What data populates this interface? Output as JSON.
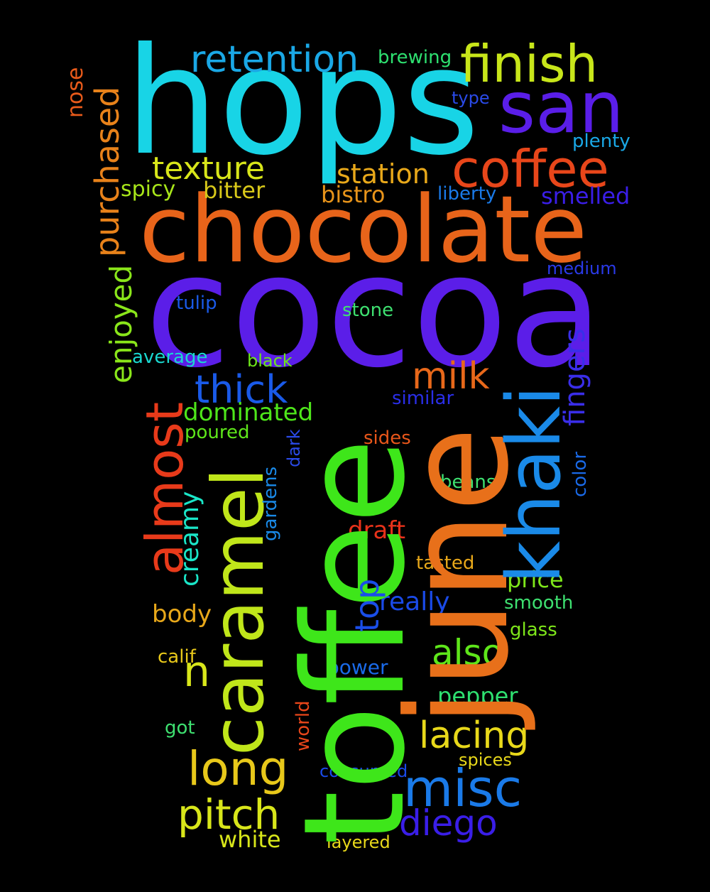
{
  "words": [
    {
      "text": "hops",
      "color": "#18d4e6"
    },
    {
      "text": "cocoa",
      "color": "#5b1ee8"
    },
    {
      "text": "chocolate",
      "color": "#e8641a"
    },
    {
      "text": "toffee",
      "color": "#3ee61a"
    },
    {
      "text": "june",
      "color": "#e8701a"
    },
    {
      "text": "caramel",
      "color": "#c0e61a"
    },
    {
      "text": "khaki",
      "color": "#1a8ae8"
    },
    {
      "text": "san",
      "color": "#5a1ee8"
    },
    {
      "text": "finish",
      "color": "#c8e61a"
    },
    {
      "text": "coffee",
      "color": "#e8461a"
    },
    {
      "text": "retention",
      "color": "#1aa8e6"
    },
    {
      "text": "brewing",
      "color": "#2ee070"
    },
    {
      "text": "nose",
      "color": "#e85a1a"
    },
    {
      "text": "purchased",
      "color": "#e8821a"
    },
    {
      "text": "texture",
      "color": "#d8e61a"
    },
    {
      "text": "station",
      "color": "#e8a81a"
    },
    {
      "text": "type",
      "color": "#2a4ae8"
    },
    {
      "text": "plenty",
      "color": "#1aa8e6"
    },
    {
      "text": "spicy",
      "color": "#a8e61a"
    },
    {
      "text": "bitter",
      "color": "#d8c81a"
    },
    {
      "text": "bistro",
      "color": "#e8941a"
    },
    {
      "text": "liberty",
      "color": "#1a7ae8"
    },
    {
      "text": "smelled",
      "color": "#3a1ee8"
    },
    {
      "text": "medium",
      "color": "#2a3ae8"
    },
    {
      "text": "enjoyed",
      "color": "#8ae61a"
    },
    {
      "text": "tulip",
      "color": "#1a5ae8"
    },
    {
      "text": "stone",
      "color": "#3ee070"
    },
    {
      "text": "fingers",
      "color": "#3a2ee8"
    },
    {
      "text": "average",
      "color": "#1ad8d0"
    },
    {
      "text": "black",
      "color": "#6ee61a"
    },
    {
      "text": "almost",
      "color": "#e83a1a"
    },
    {
      "text": "thick",
      "color": "#1a5ae8"
    },
    {
      "text": "milk",
      "color": "#e8681a"
    },
    {
      "text": "similar",
      "color": "#2a2ee8"
    },
    {
      "text": "dominated",
      "color": "#4ee61a"
    },
    {
      "text": "poured",
      "color": "#5ee61a"
    },
    {
      "text": "dark",
      "color": "#2a4ae8"
    },
    {
      "text": "sides",
      "color": "#e8561a"
    },
    {
      "text": "color",
      "color": "#1a6ae8"
    },
    {
      "text": "creamy",
      "color": "#1ae6c8"
    },
    {
      "text": "gardens",
      "color": "#1a8ae8"
    },
    {
      "text": "beans",
      "color": "#3ee070"
    },
    {
      "text": "draft",
      "color": "#e8321a"
    },
    {
      "text": "tasted",
      "color": "#e8a81a"
    },
    {
      "text": "top",
      "color": "#1a4ee8"
    },
    {
      "text": "price",
      "color": "#7ee61a"
    },
    {
      "text": "really",
      "color": "#1a4ae8"
    },
    {
      "text": "smooth",
      "color": "#3ee070"
    },
    {
      "text": "body",
      "color": "#e8a81a"
    },
    {
      "text": "glass",
      "color": "#7ee61a"
    },
    {
      "text": "n",
      "color": "#d8e61a"
    },
    {
      "text": "also",
      "color": "#5ee61a"
    },
    {
      "text": "calif",
      "color": "#e8c81a"
    },
    {
      "text": "power",
      "color": "#1a6ae8"
    },
    {
      "text": "pepper",
      "color": "#2ee070"
    },
    {
      "text": "world",
      "color": "#e8461a"
    },
    {
      "text": "got",
      "color": "#3ee070"
    },
    {
      "text": "lacing",
      "color": "#e8d81a"
    },
    {
      "text": "long",
      "color": "#e8c81a"
    },
    {
      "text": "consumed",
      "color": "#1a4ae8"
    },
    {
      "text": "spices",
      "color": "#e8d81a"
    },
    {
      "text": "misc",
      "color": "#1a7ae8"
    },
    {
      "text": "pitch",
      "color": "#d8e61a"
    },
    {
      "text": "diego",
      "color": "#3a1ee8"
    },
    {
      "text": "white",
      "color": "#d8e61a"
    },
    {
      "text": "layered",
      "color": "#e8d81a"
    }
  ]
}
